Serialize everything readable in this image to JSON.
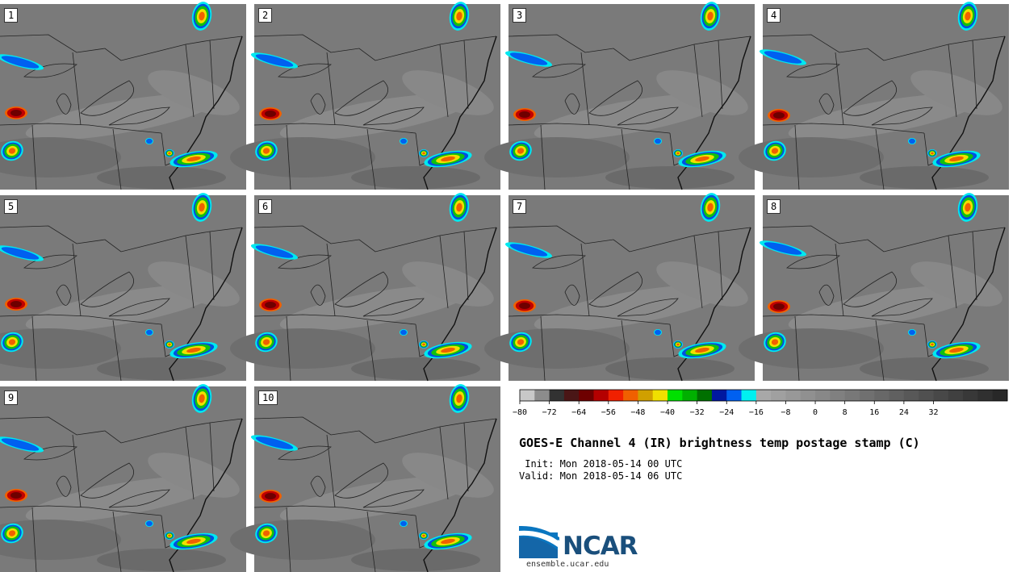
{
  "panels": [
    {
      "label": "1"
    },
    {
      "label": "2"
    },
    {
      "label": "3"
    },
    {
      "label": "4"
    },
    {
      "label": "5"
    },
    {
      "label": "6"
    },
    {
      "label": "7"
    },
    {
      "label": "8"
    },
    {
      "label": "9"
    },
    {
      "label": "10"
    }
  ],
  "colorbar": {
    "ticks": [
      "−80",
      "−72",
      "−64",
      "−56",
      "−48",
      "−40",
      "−32",
      "−24",
      "−16",
      "−8",
      "0",
      "8",
      "16",
      "24",
      "32"
    ],
    "colors": [
      "#c8c8c8",
      "#8c8c8c",
      "#323232",
      "#4a1616",
      "#6e0000",
      "#b40000",
      "#f02000",
      "#f06000",
      "#d0a000",
      "#f0e000",
      "#00e000",
      "#00b000",
      "#007000",
      "#0018a0",
      "#0060f0",
      "#00f0f0",
      "#a8a8a8",
      "#a0a0a0",
      "#989898",
      "#909090",
      "#888888",
      "#808080",
      "#787878",
      "#707070",
      "#686868",
      "#606060",
      "#585858",
      "#505050",
      "#484848",
      "#404040",
      "#383838",
      "#303030",
      "#282828"
    ]
  },
  "title": "GOES-E Channel 4 (IR) brightness temp postage stamp (C)",
  "init": " Init: Mon 2018-05-14 00 UTC",
  "valid": "Valid: Mon 2018-05-14 06 UTC",
  "logo": {
    "name": "NCAR",
    "url": "ensemble.ucar.edu"
  }
}
